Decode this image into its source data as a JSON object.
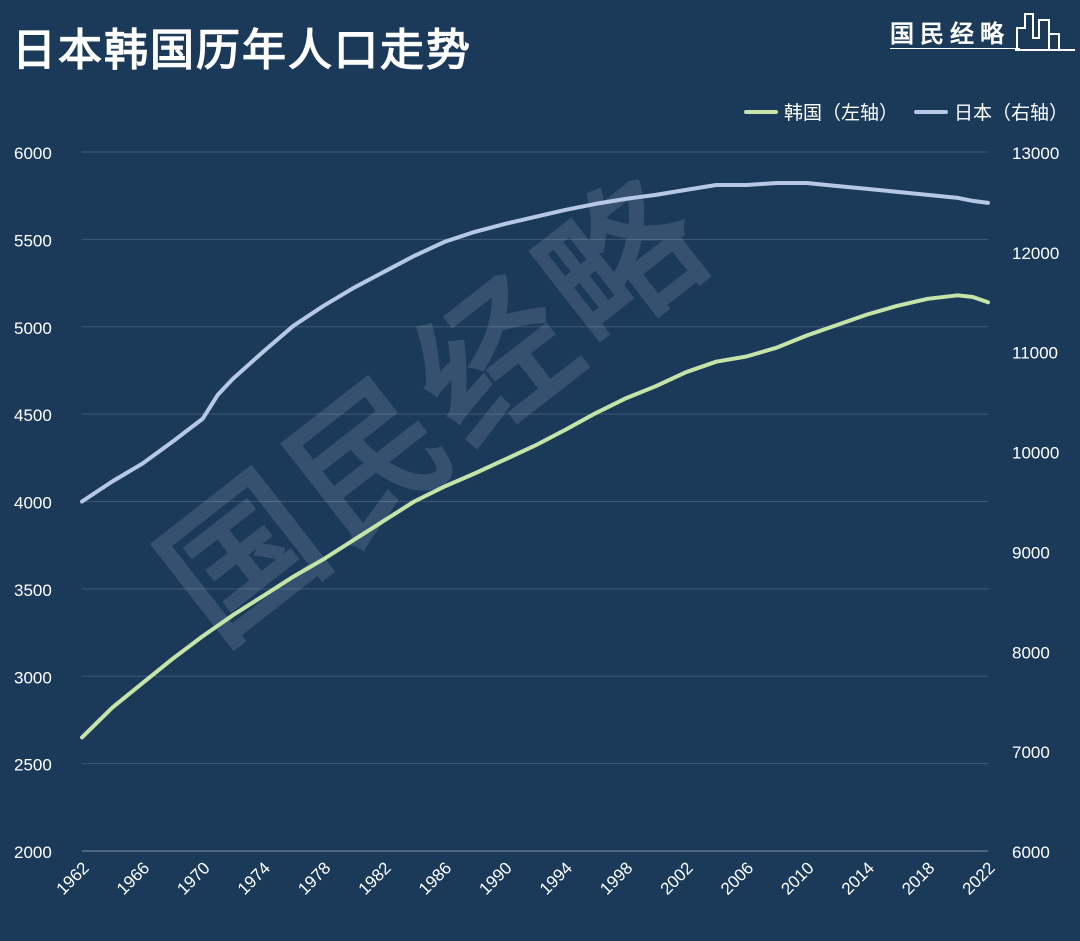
{
  "title": "日本韩国历年人口走势",
  "brand": "国民经略",
  "watermark": "国民经略",
  "chart_data": {
    "type": "line",
    "legend_position": "top-right",
    "grid": true,
    "x": [
      1962,
      1964,
      1966,
      1968,
      1970,
      1971,
      1972,
      1974,
      1976,
      1978,
      1980,
      1982,
      1984,
      1986,
      1988,
      1990,
      1992,
      1994,
      1996,
      1998,
      2000,
      2002,
      2004,
      2006,
      2008,
      2010,
      2012,
      2014,
      2016,
      2018,
      2020,
      2021,
      2022
    ],
    "x_tick_labels": [
      "1962",
      "1966",
      "1970",
      "1974",
      "1978",
      "1982",
      "1986",
      "1990",
      "1994",
      "1998",
      "2002",
      "2006",
      "2010",
      "2014",
      "2018",
      "2022"
    ],
    "y_left": {
      "label": "韩国（左轴）",
      "range": [
        2000,
        6000
      ],
      "ticks": [
        "2000",
        "2500",
        "3000",
        "3500",
        "4000",
        "4500",
        "5000",
        "5500",
        "6000"
      ]
    },
    "y_right": {
      "label": "日本（右轴）",
      "range": [
        6000,
        13000
      ],
      "ticks": [
        "6000",
        "7000",
        "8000",
        "9000",
        "10000",
        "11000",
        "12000",
        "13000"
      ]
    },
    "series": [
      {
        "name": "韩国（左轴）",
        "axis": "left",
        "color": "#c6e3a8",
        "values": [
          2650,
          2820,
          2960,
          3100,
          3230,
          3290,
          3350,
          3460,
          3570,
          3670,
          3780,
          3890,
          4000,
          4085,
          4160,
          4240,
          4320,
          4410,
          4505,
          4590,
          4660,
          4740,
          4800,
          4830,
          4880,
          4950,
          5010,
          5070,
          5120,
          5160,
          5180,
          5170,
          5140
        ]
      },
      {
        "name": "日本（右轴）",
        "axis": "right",
        "color": "#b6c8e6",
        "values": [
          9500,
          9700,
          9880,
          10100,
          10330,
          10570,
          10730,
          11000,
          11260,
          11460,
          11640,
          11800,
          11960,
          12100,
          12200,
          12280,
          12350,
          12420,
          12480,
          12530,
          12570,
          12620,
          12670,
          12670,
          12690,
          12690,
          12660,
          12630,
          12600,
          12570,
          12540,
          12510,
          12490
        ]
      }
    ]
  }
}
